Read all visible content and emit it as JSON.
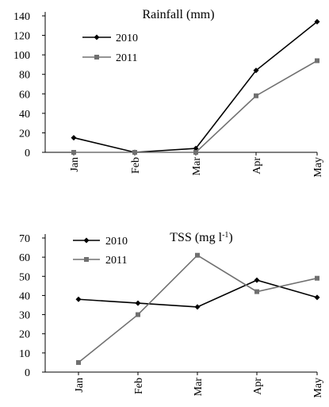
{
  "chart_data": [
    {
      "type": "line",
      "title": "Rainfall (mm)",
      "categories": [
        "Jan",
        "Feb",
        "Mar",
        "Apr",
        "May"
      ],
      "ylim": [
        0,
        140
      ],
      "yticks": [
        0,
        20,
        40,
        60,
        80,
        100,
        120,
        140
      ],
      "grid": false,
      "legend_position": "top-left",
      "series": [
        {
          "name": "2010",
          "values": [
            15,
            0,
            4,
            84,
            134
          ],
          "color": "#000000",
          "marker": "diamond"
        },
        {
          "name": "2011",
          "values": [
            0,
            0,
            0,
            58,
            94
          ],
          "color": "#707070",
          "marker": "square"
        }
      ]
    },
    {
      "type": "line",
      "title": "TSS (mg l",
      "title_sup": "-1",
      "title_suffix": ")",
      "categories": [
        "Jan",
        "Feb",
        "Mar",
        "Apr",
        "May"
      ],
      "ylim": [
        0,
        70
      ],
      "yticks": [
        0,
        10,
        20,
        30,
        40,
        50,
        60,
        70
      ],
      "grid": false,
      "legend_position": "top-left",
      "series": [
        {
          "name": "2010",
          "values": [
            38,
            36,
            34,
            48,
            39
          ],
          "color": "#000000",
          "marker": "diamond"
        },
        {
          "name": "2011",
          "values": [
            5,
            30,
            61,
            42,
            49
          ],
          "color": "#707070",
          "marker": "square"
        }
      ]
    }
  ]
}
